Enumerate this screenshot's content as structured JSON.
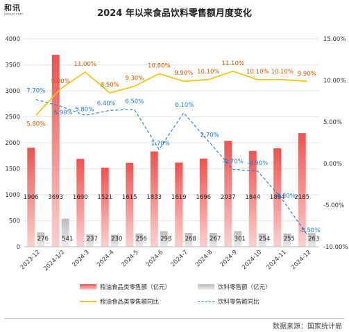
{
  "title": "2024 年以来食品饮料零售额月度变化",
  "logo": {
    "main": "和讯",
    "sub": "hexun.com"
  },
  "source": "数据来源：国家统计局",
  "colors": {
    "grain_bar_top": "#ef5350",
    "grain_bar_bottom": "#fbd0cf",
    "beverage_bar_top": "#bdbdbd",
    "beverage_bar_bottom": "#ececec",
    "grain_line": "#f5c518",
    "beverage_line": "#1f77d4",
    "grain_label": "#cc5a00",
    "beverage_label": "#1f77d4"
  },
  "chart_data": {
    "type": "bar",
    "categories": [
      "2023-12",
      "2024-1/2",
      "2024-3",
      "2024-4",
      "2024-5",
      "2024-6",
      "2024-7",
      "2024-8",
      "2024-9",
      "2024-10",
      "2024-11",
      "2024-12"
    ],
    "left_axis": {
      "ylim": [
        0,
        4000
      ],
      "ticks": [
        0,
        500,
        1000,
        1500,
        2000,
        2500,
        3000,
        3500,
        4000
      ]
    },
    "right_axis": {
      "ylim": [
        -10,
        15
      ],
      "ticks": [
        "-10.00%",
        "-5.00%",
        "0.00%",
        "5.00%",
        "10.00%",
        "15.00%"
      ],
      "tick_values": [
        -10,
        -5,
        0,
        5,
        10,
        15
      ]
    },
    "series": [
      {
        "name": "粮油食品类零售额（亿元）",
        "kind": "bar",
        "axis": "left",
        "values": [
          1906,
          3693,
          1690,
          1521,
          1615,
          1833,
          1619,
          1696,
          2037,
          1844,
          1894,
          2185
        ]
      },
      {
        "name": "饮料零售额（亿元）",
        "kind": "bar",
        "axis": "left",
        "values": [
          276,
          541,
          237,
          230,
          256,
          298,
          268,
          267,
          301,
          254,
          255,
          263
        ]
      },
      {
        "name": "粮油食品类零售额同比",
        "kind": "line",
        "axis": "right",
        "style": "solid",
        "values": [
          5.8,
          9.0,
          11.0,
          8.5,
          9.3,
          10.8,
          9.9,
          10.1,
          11.1,
          10.1,
          10.1,
          9.9
        ],
        "labels": [
          "5.80%",
          "9.00%",
          "11.00%",
          "8.50%",
          "9.30%",
          "10.80%",
          "9.90%",
          "10.10%",
          "11.10%",
          "10.10%",
          "10.10%",
          "9.90%"
        ]
      },
      {
        "name": "饮料零售额同比",
        "kind": "line",
        "axis": "right",
        "style": "dashed",
        "values": [
          7.7,
          6.9,
          5.8,
          6.4,
          6.5,
          1.7,
          6.1,
          2.7,
          -0.7,
          -0.9,
          -4.3,
          -8.5
        ],
        "labels": [
          "7.70%",
          "6.90%",
          "5.80%",
          "6.40%",
          "6.50%",
          "1.70%",
          "6.10%",
          "2.70%",
          "-0.70%",
          "-0.90%",
          "-4.30%",
          "-8.50%"
        ]
      }
    ]
  }
}
